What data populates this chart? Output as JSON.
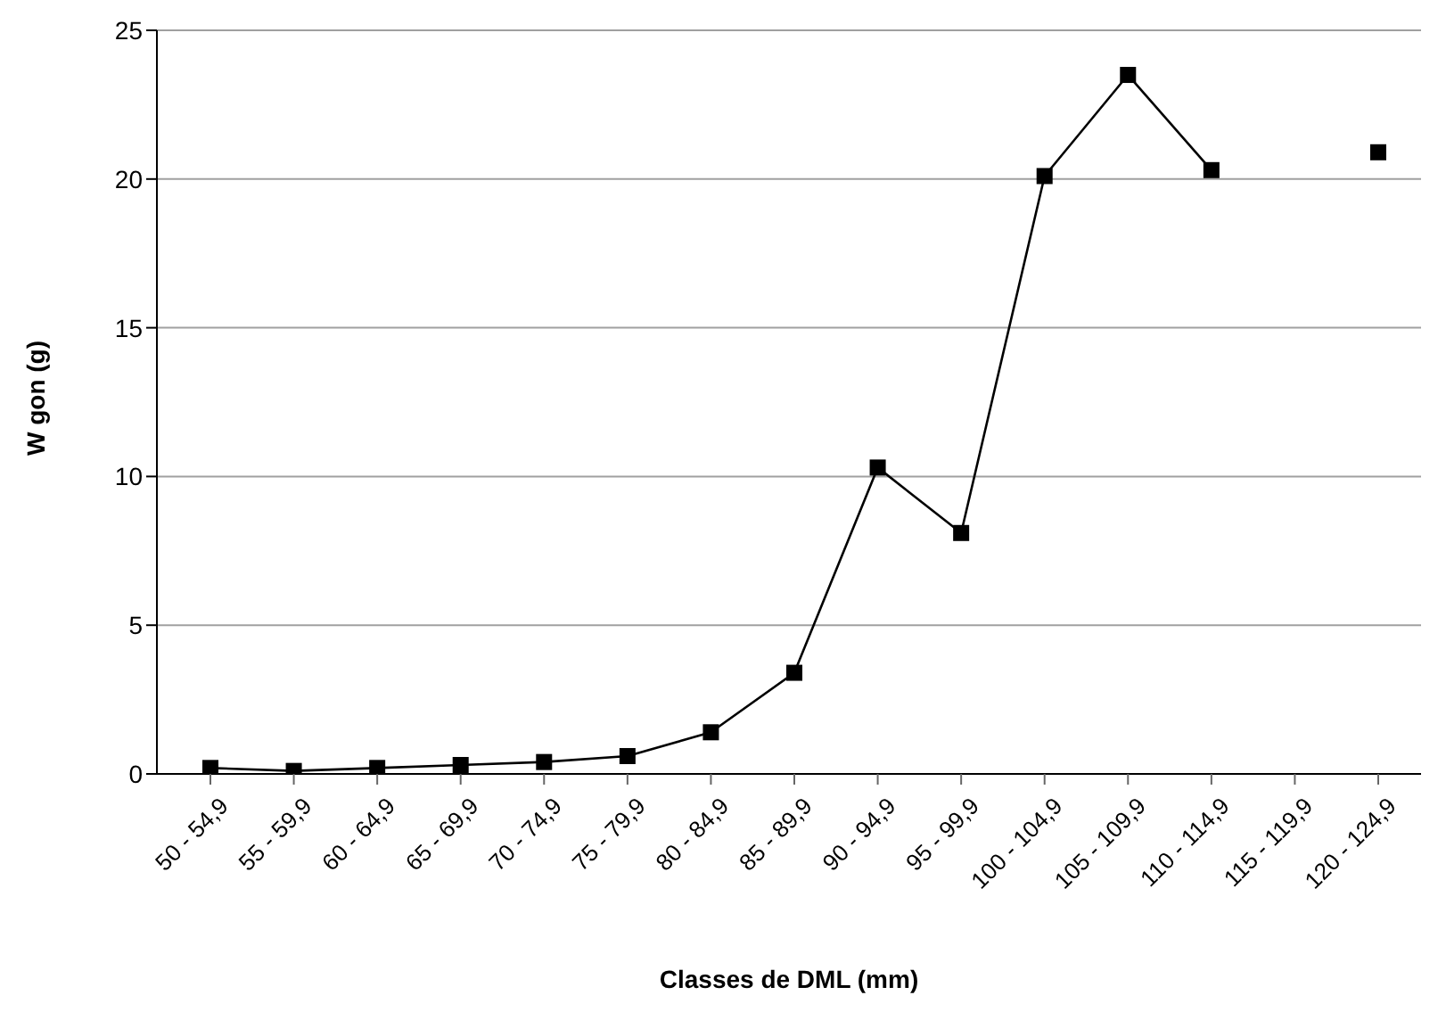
{
  "chart_data": {
    "type": "line",
    "xlabel": "Classes de DML (mm)",
    "ylabel": "W gon (g)",
    "categories": [
      "50 - 54,9",
      "55 - 59,9",
      "60 - 64,9",
      "65 - 69,9",
      "70 - 74,9",
      "75 - 79,9",
      "80 - 84,9",
      "85 - 89,9",
      "90 - 94,9",
      "95 - 99,9",
      "100 - 104,9",
      "105 - 109,9",
      "110 - 114,9",
      "115 - 119,9",
      "120 - 124,9"
    ],
    "values": [
      0.2,
      0.1,
      0.2,
      0.3,
      0.4,
      0.6,
      1.4,
      3.4,
      10.3,
      8.1,
      20.1,
      23.5,
      20.3,
      null,
      20.9
    ],
    "color": "#000000",
    "ylim": [
      0,
      25
    ],
    "yticks": [
      0,
      5,
      10,
      15,
      20,
      25
    ],
    "grid": "y",
    "marker": "square",
    "line_style": "solid",
    "legend": false
  }
}
